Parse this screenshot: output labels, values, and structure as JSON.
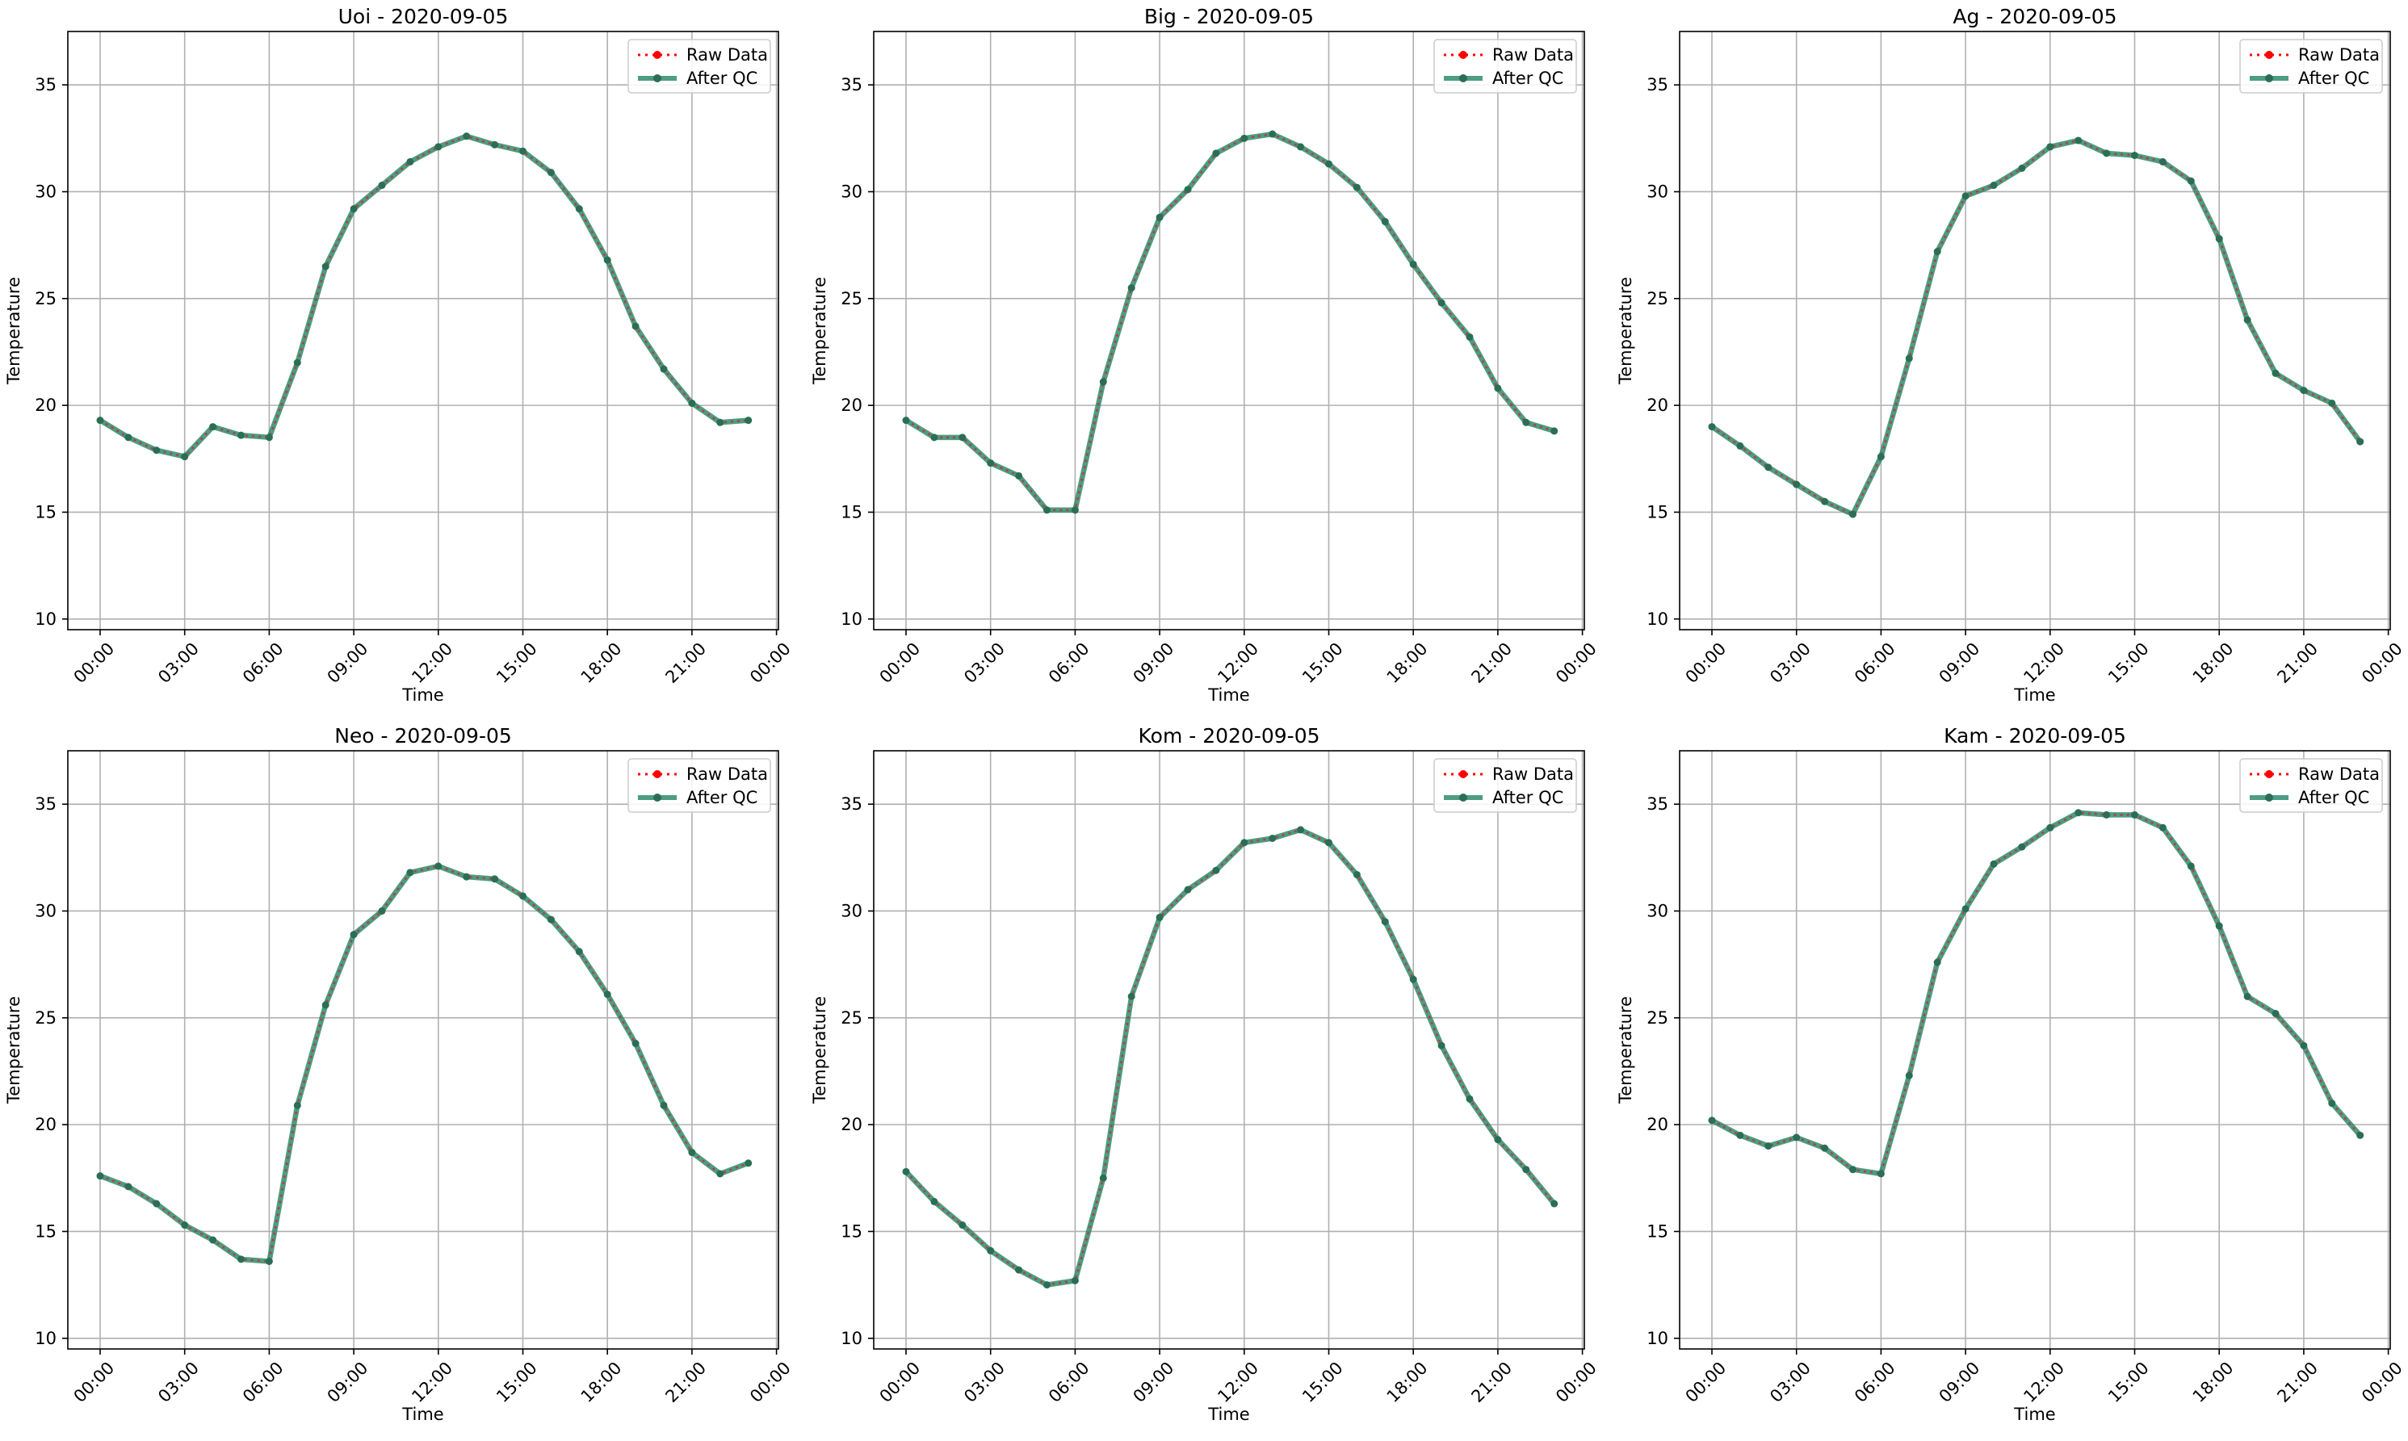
{
  "figure": {
    "x_label": "Time",
    "y_label": "Temperature",
    "legend": {
      "raw_label": "Raw Data",
      "qc_label": "After QC",
      "placement": "upper right"
    },
    "colors": {
      "raw": "#ff0000",
      "qc": "#2e8b6e",
      "grid": "#b0b0b0",
      "axis": "#000000"
    }
  },
  "chart_data": [
    {
      "type": "line",
      "title": "Uoi - 2020-09-05",
      "xlabel": "Time",
      "ylabel": "Temperature",
      "ylim": [
        9.5,
        37.5
      ],
      "yticks": [
        10,
        15,
        20,
        25,
        30,
        35
      ],
      "xticks": [
        "00:00",
        "03:00",
        "06:00",
        "09:00",
        "12:00",
        "15:00",
        "18:00",
        "21:00",
        "00:00"
      ],
      "grid": true,
      "legend_position": "top-right",
      "x": [
        "00:00",
        "01:00",
        "02:00",
        "03:00",
        "04:00",
        "05:00",
        "06:00",
        "07:00",
        "08:00",
        "09:00",
        "10:00",
        "11:00",
        "12:00",
        "13:00",
        "14:00",
        "15:00",
        "16:00",
        "17:00",
        "18:00",
        "19:00",
        "20:00",
        "21:00",
        "22:00",
        "23:00"
      ],
      "series": [
        {
          "name": "Raw Data",
          "values": [
            19.3,
            18.5,
            17.9,
            17.6,
            19.0,
            18.6,
            18.5,
            22.0,
            26.5,
            29.2,
            30.3,
            31.4,
            32.1,
            32.6,
            32.2,
            31.9,
            30.9,
            29.2,
            26.8,
            23.7,
            21.7,
            20.1,
            19.2,
            19.3
          ]
        },
        {
          "name": "After QC",
          "values": [
            19.3,
            18.5,
            17.9,
            17.6,
            19.0,
            18.6,
            18.5,
            22.0,
            26.5,
            29.2,
            30.3,
            31.4,
            32.1,
            32.6,
            32.2,
            31.9,
            30.9,
            29.2,
            26.8,
            23.7,
            21.7,
            20.1,
            19.2,
            19.3
          ]
        }
      ]
    },
    {
      "type": "line",
      "title": "Big - 2020-09-05",
      "xlabel": "Time",
      "ylabel": "Temperature",
      "ylim": [
        9.5,
        37.5
      ],
      "yticks": [
        10,
        15,
        20,
        25,
        30,
        35
      ],
      "xticks": [
        "00:00",
        "03:00",
        "06:00",
        "09:00",
        "12:00",
        "15:00",
        "18:00",
        "21:00",
        "00:00"
      ],
      "grid": true,
      "legend_position": "top-right",
      "x": [
        "00:00",
        "01:00",
        "02:00",
        "03:00",
        "04:00",
        "05:00",
        "06:00",
        "07:00",
        "08:00",
        "09:00",
        "10:00",
        "11:00",
        "12:00",
        "13:00",
        "14:00",
        "15:00",
        "16:00",
        "17:00",
        "18:00",
        "19:00",
        "20:00",
        "21:00",
        "22:00",
        "23:00"
      ],
      "series": [
        {
          "name": "Raw Data",
          "values": [
            19.3,
            18.5,
            18.5,
            17.3,
            16.7,
            15.1,
            15.1,
            21.1,
            25.5,
            28.8,
            30.1,
            31.8,
            32.5,
            32.7,
            32.1,
            31.3,
            30.2,
            28.6,
            26.6,
            24.8,
            23.2,
            20.8,
            19.2,
            18.8
          ]
        },
        {
          "name": "After QC",
          "values": [
            19.3,
            18.5,
            18.5,
            17.3,
            16.7,
            15.1,
            15.1,
            21.1,
            25.5,
            28.8,
            30.1,
            31.8,
            32.5,
            32.7,
            32.1,
            31.3,
            30.2,
            28.6,
            26.6,
            24.8,
            23.2,
            20.8,
            19.2,
            18.8
          ]
        }
      ]
    },
    {
      "type": "line",
      "title": "Ag - 2020-09-05",
      "xlabel": "Time",
      "ylabel": "Temperature",
      "ylim": [
        9.5,
        37.5
      ],
      "yticks": [
        10,
        15,
        20,
        25,
        30,
        35
      ],
      "xticks": [
        "00:00",
        "03:00",
        "06:00",
        "09:00",
        "12:00",
        "15:00",
        "18:00",
        "21:00",
        "00:00"
      ],
      "grid": true,
      "legend_position": "top-right",
      "x": [
        "00:00",
        "01:00",
        "02:00",
        "03:00",
        "04:00",
        "05:00",
        "06:00",
        "07:00",
        "08:00",
        "09:00",
        "10:00",
        "11:00",
        "12:00",
        "13:00",
        "14:00",
        "15:00",
        "16:00",
        "17:00",
        "18:00",
        "19:00",
        "20:00",
        "21:00",
        "22:00",
        "23:00"
      ],
      "series": [
        {
          "name": "Raw Data",
          "values": [
            19.0,
            18.1,
            17.1,
            16.3,
            15.5,
            14.9,
            17.6,
            22.2,
            27.2,
            29.8,
            30.3,
            31.1,
            32.1,
            32.4,
            31.8,
            31.7,
            31.4,
            30.5,
            27.8,
            24.0,
            21.5,
            20.7,
            20.1,
            18.3
          ]
        },
        {
          "name": "After QC",
          "values": [
            19.0,
            18.1,
            17.1,
            16.3,
            15.5,
            14.9,
            17.6,
            22.2,
            27.2,
            29.8,
            30.3,
            31.1,
            32.1,
            32.4,
            31.8,
            31.7,
            31.4,
            30.5,
            27.8,
            24.0,
            21.5,
            20.7,
            20.1,
            18.3
          ]
        }
      ]
    },
    {
      "type": "line",
      "title": "Neo - 2020-09-05",
      "xlabel": "Time",
      "ylabel": "Temperature",
      "ylim": [
        9.5,
        37.5
      ],
      "yticks": [
        10,
        15,
        20,
        25,
        30,
        35
      ],
      "xticks": [
        "00:00",
        "03:00",
        "06:00",
        "09:00",
        "12:00",
        "15:00",
        "18:00",
        "21:00",
        "00:00"
      ],
      "grid": true,
      "legend_position": "top-right",
      "x": [
        "00:00",
        "01:00",
        "02:00",
        "03:00",
        "04:00",
        "05:00",
        "06:00",
        "07:00",
        "08:00",
        "09:00",
        "10:00",
        "11:00",
        "12:00",
        "13:00",
        "14:00",
        "15:00",
        "16:00",
        "17:00",
        "18:00",
        "19:00",
        "20:00",
        "21:00",
        "22:00",
        "23:00"
      ],
      "series": [
        {
          "name": "Raw Data",
          "values": [
            17.6,
            17.1,
            16.3,
            15.3,
            14.6,
            13.7,
            13.6,
            20.9,
            25.6,
            28.9,
            30.0,
            31.8,
            32.1,
            31.6,
            31.5,
            30.7,
            29.6,
            28.1,
            26.1,
            23.8,
            20.9,
            18.7,
            17.7,
            18.2
          ]
        },
        {
          "name": "After QC",
          "values": [
            17.6,
            17.1,
            16.3,
            15.3,
            14.6,
            13.7,
            13.6,
            20.9,
            25.6,
            28.9,
            30.0,
            31.8,
            32.1,
            31.6,
            31.5,
            30.7,
            29.6,
            28.1,
            26.1,
            23.8,
            20.9,
            18.7,
            17.7,
            18.2
          ]
        }
      ]
    },
    {
      "type": "line",
      "title": "Kom - 2020-09-05",
      "xlabel": "Time",
      "ylabel": "Temperature",
      "ylim": [
        9.5,
        37.5
      ],
      "yticks": [
        10,
        15,
        20,
        25,
        30,
        35
      ],
      "xticks": [
        "00:00",
        "03:00",
        "06:00",
        "09:00",
        "12:00",
        "15:00",
        "18:00",
        "21:00",
        "00:00"
      ],
      "grid": true,
      "legend_position": "top-right",
      "x": [
        "00:00",
        "01:00",
        "02:00",
        "03:00",
        "04:00",
        "05:00",
        "06:00",
        "07:00",
        "08:00",
        "09:00",
        "10:00",
        "11:00",
        "12:00",
        "13:00",
        "14:00",
        "15:00",
        "16:00",
        "17:00",
        "18:00",
        "19:00",
        "20:00",
        "21:00",
        "22:00",
        "23:00"
      ],
      "series": [
        {
          "name": "Raw Data",
          "values": [
            17.8,
            16.4,
            15.3,
            14.1,
            13.2,
            12.5,
            12.7,
            17.5,
            26.0,
            29.7,
            31.0,
            31.9,
            33.2,
            33.4,
            33.8,
            33.2,
            31.7,
            29.5,
            26.8,
            23.7,
            21.2,
            19.3,
            17.9,
            16.3
          ]
        },
        {
          "name": "After QC",
          "values": [
            17.8,
            16.4,
            15.3,
            14.1,
            13.2,
            12.5,
            12.7,
            17.5,
            26.0,
            29.7,
            31.0,
            31.9,
            33.2,
            33.4,
            33.8,
            33.2,
            31.7,
            29.5,
            26.8,
            23.7,
            21.2,
            19.3,
            17.9,
            16.3
          ]
        }
      ]
    },
    {
      "type": "line",
      "title": "Kam - 2020-09-05",
      "xlabel": "Time",
      "ylabel": "Temperature",
      "ylim": [
        9.5,
        37.5
      ],
      "yticks": [
        10,
        15,
        20,
        25,
        30,
        35
      ],
      "xticks": [
        "00:00",
        "03:00",
        "06:00",
        "09:00",
        "12:00",
        "15:00",
        "18:00",
        "21:00",
        "00:00"
      ],
      "grid": true,
      "legend_position": "top-right",
      "x": [
        "00:00",
        "01:00",
        "02:00",
        "03:00",
        "04:00",
        "05:00",
        "06:00",
        "07:00",
        "08:00",
        "09:00",
        "10:00",
        "11:00",
        "12:00",
        "13:00",
        "14:00",
        "15:00",
        "16:00",
        "17:00",
        "18:00",
        "19:00",
        "20:00",
        "21:00",
        "22:00",
        "23:00"
      ],
      "series": [
        {
          "name": "Raw Data",
          "values": [
            20.2,
            19.5,
            19.0,
            19.4,
            18.9,
            17.9,
            17.7,
            22.3,
            27.6,
            30.1,
            32.2,
            33.0,
            33.9,
            34.6,
            34.5,
            34.5,
            33.9,
            32.1,
            29.3,
            26.0,
            25.2,
            23.7,
            21.0,
            19.5
          ]
        },
        {
          "name": "After QC",
          "values": [
            20.2,
            19.5,
            19.0,
            19.4,
            18.9,
            17.9,
            17.7,
            22.3,
            27.6,
            30.1,
            32.2,
            33.0,
            33.9,
            34.6,
            34.5,
            34.5,
            33.9,
            32.1,
            29.3,
            26.0,
            25.2,
            23.7,
            21.0,
            19.5
          ]
        }
      ]
    }
  ]
}
